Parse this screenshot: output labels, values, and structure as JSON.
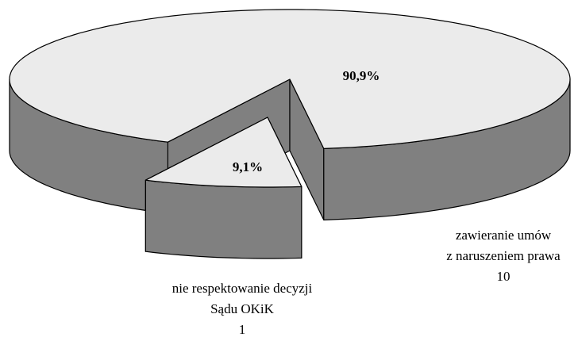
{
  "chart_data": {
    "type": "pie3d",
    "categories": [
      [
        "zawieranie umów",
        "z naruszeniem prawa"
      ],
      [
        "nie respektowanie decyzji",
        "Sądu OKiK"
      ]
    ],
    "values": [
      90.9,
      9.1
    ],
    "value_labels": [
      "90,9%",
      "9,1%"
    ],
    "counts": [
      10,
      1
    ],
    "top_color": "#ebebeb",
    "side_color": "#808080",
    "exploded": [
      false,
      true
    ]
  }
}
